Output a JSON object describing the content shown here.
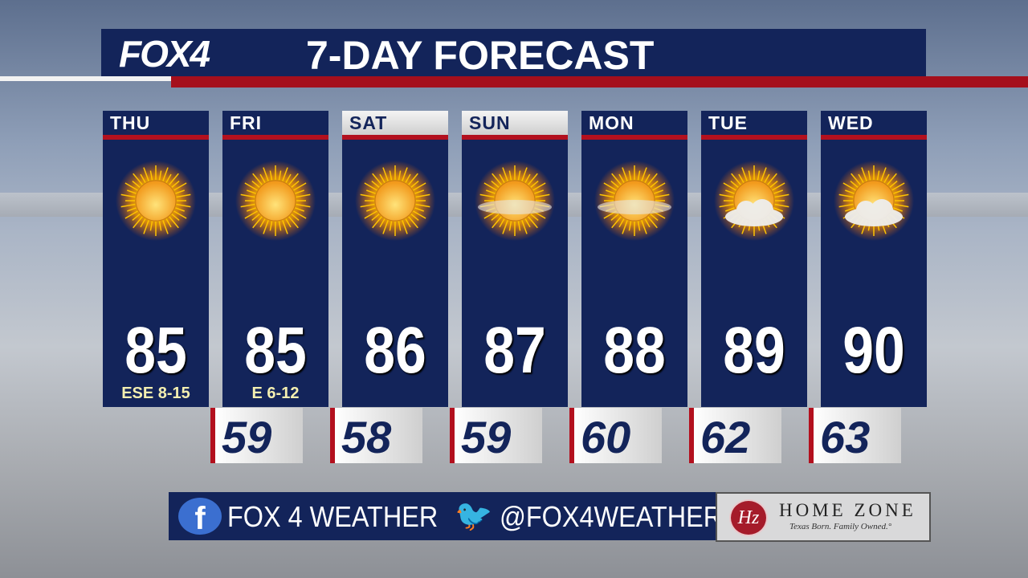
{
  "header": {
    "logo": "FOX4",
    "title": "7-DAY FORECAST"
  },
  "days": [
    {
      "day": "THU",
      "high": "85",
      "wind": "ESE 8-15",
      "icon": "sunny-icon",
      "low": null
    },
    {
      "day": "FRI",
      "high": "85",
      "wind": "E 6-12",
      "icon": "sunny-icon",
      "low": "59"
    },
    {
      "day": "SAT",
      "high": "86",
      "wind": "",
      "icon": "sunny-icon",
      "low": "58"
    },
    {
      "day": "SUN",
      "high": "87",
      "wind": "",
      "icon": "hazy-sun-icon",
      "low": "59"
    },
    {
      "day": "MON",
      "high": "88",
      "wind": "",
      "icon": "hazy-sun-icon",
      "low": "60"
    },
    {
      "day": "TUE",
      "high": "89",
      "wind": "",
      "icon": "partly-cloudy-icon",
      "low": "62"
    },
    {
      "day": "WED",
      "high": "90",
      "wind": "",
      "icon": "partly-cloudy-icon",
      "low": "63"
    }
  ],
  "footer": {
    "facebook": "FOX 4 WEATHER",
    "twitter": "@FOX4WEATHER"
  },
  "sponsor": {
    "logo": "HZ",
    "name": "HOME ZONE",
    "tagline": "Texas Born. Family Owned.°"
  },
  "colors": {
    "navy": "#13245a",
    "red": "#b3101e",
    "wind": "#f4efb0"
  }
}
